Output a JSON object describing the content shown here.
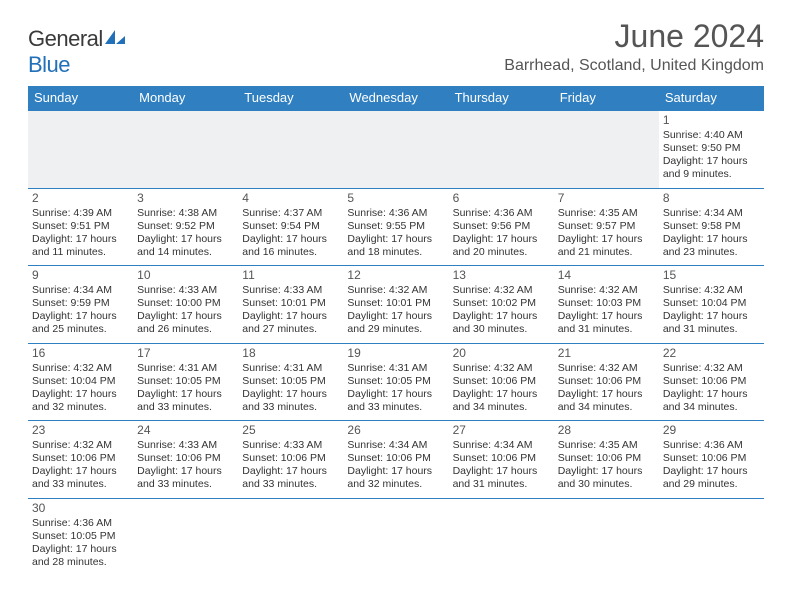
{
  "brand": {
    "name_a": "General",
    "name_b": "Blue"
  },
  "title": "June 2024",
  "location": "Barrhead, Scotland, United Kingdom",
  "colors": {
    "header_bg": "#2f7fc1",
    "header_fg": "#ffffff",
    "rule": "#2f7fc1"
  },
  "weekdays": [
    "Sunday",
    "Monday",
    "Tuesday",
    "Wednesday",
    "Thursday",
    "Friday",
    "Saturday"
  ],
  "weeks": [
    [
      null,
      null,
      null,
      null,
      null,
      null,
      {
        "n": "1",
        "sr": "Sunrise: 4:40 AM",
        "ss": "Sunset: 9:50 PM",
        "d1": "Daylight: 17 hours",
        "d2": "and 9 minutes."
      }
    ],
    [
      {
        "n": "2",
        "sr": "Sunrise: 4:39 AM",
        "ss": "Sunset: 9:51 PM",
        "d1": "Daylight: 17 hours",
        "d2": "and 11 minutes."
      },
      {
        "n": "3",
        "sr": "Sunrise: 4:38 AM",
        "ss": "Sunset: 9:52 PM",
        "d1": "Daylight: 17 hours",
        "d2": "and 14 minutes."
      },
      {
        "n": "4",
        "sr": "Sunrise: 4:37 AM",
        "ss": "Sunset: 9:54 PM",
        "d1": "Daylight: 17 hours",
        "d2": "and 16 minutes."
      },
      {
        "n": "5",
        "sr": "Sunrise: 4:36 AM",
        "ss": "Sunset: 9:55 PM",
        "d1": "Daylight: 17 hours",
        "d2": "and 18 minutes."
      },
      {
        "n": "6",
        "sr": "Sunrise: 4:36 AM",
        "ss": "Sunset: 9:56 PM",
        "d1": "Daylight: 17 hours",
        "d2": "and 20 minutes."
      },
      {
        "n": "7",
        "sr": "Sunrise: 4:35 AM",
        "ss": "Sunset: 9:57 PM",
        "d1": "Daylight: 17 hours",
        "d2": "and 21 minutes."
      },
      {
        "n": "8",
        "sr": "Sunrise: 4:34 AM",
        "ss": "Sunset: 9:58 PM",
        "d1": "Daylight: 17 hours",
        "d2": "and 23 minutes."
      }
    ],
    [
      {
        "n": "9",
        "sr": "Sunrise: 4:34 AM",
        "ss": "Sunset: 9:59 PM",
        "d1": "Daylight: 17 hours",
        "d2": "and 25 minutes."
      },
      {
        "n": "10",
        "sr": "Sunrise: 4:33 AM",
        "ss": "Sunset: 10:00 PM",
        "d1": "Daylight: 17 hours",
        "d2": "and 26 minutes."
      },
      {
        "n": "11",
        "sr": "Sunrise: 4:33 AM",
        "ss": "Sunset: 10:01 PM",
        "d1": "Daylight: 17 hours",
        "d2": "and 27 minutes."
      },
      {
        "n": "12",
        "sr": "Sunrise: 4:32 AM",
        "ss": "Sunset: 10:01 PM",
        "d1": "Daylight: 17 hours",
        "d2": "and 29 minutes."
      },
      {
        "n": "13",
        "sr": "Sunrise: 4:32 AM",
        "ss": "Sunset: 10:02 PM",
        "d1": "Daylight: 17 hours",
        "d2": "and 30 minutes."
      },
      {
        "n": "14",
        "sr": "Sunrise: 4:32 AM",
        "ss": "Sunset: 10:03 PM",
        "d1": "Daylight: 17 hours",
        "d2": "and 31 minutes."
      },
      {
        "n": "15",
        "sr": "Sunrise: 4:32 AM",
        "ss": "Sunset: 10:04 PM",
        "d1": "Daylight: 17 hours",
        "d2": "and 31 minutes."
      }
    ],
    [
      {
        "n": "16",
        "sr": "Sunrise: 4:32 AM",
        "ss": "Sunset: 10:04 PM",
        "d1": "Daylight: 17 hours",
        "d2": "and 32 minutes."
      },
      {
        "n": "17",
        "sr": "Sunrise: 4:31 AM",
        "ss": "Sunset: 10:05 PM",
        "d1": "Daylight: 17 hours",
        "d2": "and 33 minutes."
      },
      {
        "n": "18",
        "sr": "Sunrise: 4:31 AM",
        "ss": "Sunset: 10:05 PM",
        "d1": "Daylight: 17 hours",
        "d2": "and 33 minutes."
      },
      {
        "n": "19",
        "sr": "Sunrise: 4:31 AM",
        "ss": "Sunset: 10:05 PM",
        "d1": "Daylight: 17 hours",
        "d2": "and 33 minutes."
      },
      {
        "n": "20",
        "sr": "Sunrise: 4:32 AM",
        "ss": "Sunset: 10:06 PM",
        "d1": "Daylight: 17 hours",
        "d2": "and 34 minutes."
      },
      {
        "n": "21",
        "sr": "Sunrise: 4:32 AM",
        "ss": "Sunset: 10:06 PM",
        "d1": "Daylight: 17 hours",
        "d2": "and 34 minutes."
      },
      {
        "n": "22",
        "sr": "Sunrise: 4:32 AM",
        "ss": "Sunset: 10:06 PM",
        "d1": "Daylight: 17 hours",
        "d2": "and 34 minutes."
      }
    ],
    [
      {
        "n": "23",
        "sr": "Sunrise: 4:32 AM",
        "ss": "Sunset: 10:06 PM",
        "d1": "Daylight: 17 hours",
        "d2": "and 33 minutes."
      },
      {
        "n": "24",
        "sr": "Sunrise: 4:33 AM",
        "ss": "Sunset: 10:06 PM",
        "d1": "Daylight: 17 hours",
        "d2": "and 33 minutes."
      },
      {
        "n": "25",
        "sr": "Sunrise: 4:33 AM",
        "ss": "Sunset: 10:06 PM",
        "d1": "Daylight: 17 hours",
        "d2": "and 33 minutes."
      },
      {
        "n": "26",
        "sr": "Sunrise: 4:34 AM",
        "ss": "Sunset: 10:06 PM",
        "d1": "Daylight: 17 hours",
        "d2": "and 32 minutes."
      },
      {
        "n": "27",
        "sr": "Sunrise: 4:34 AM",
        "ss": "Sunset: 10:06 PM",
        "d1": "Daylight: 17 hours",
        "d2": "and 31 minutes."
      },
      {
        "n": "28",
        "sr": "Sunrise: 4:35 AM",
        "ss": "Sunset: 10:06 PM",
        "d1": "Daylight: 17 hours",
        "d2": "and 30 minutes."
      },
      {
        "n": "29",
        "sr": "Sunrise: 4:36 AM",
        "ss": "Sunset: 10:06 PM",
        "d1": "Daylight: 17 hours",
        "d2": "and 29 minutes."
      }
    ],
    [
      {
        "n": "30",
        "sr": "Sunrise: 4:36 AM",
        "ss": "Sunset: 10:05 PM",
        "d1": "Daylight: 17 hours",
        "d2": "and 28 minutes."
      },
      null,
      null,
      null,
      null,
      null,
      null
    ]
  ]
}
